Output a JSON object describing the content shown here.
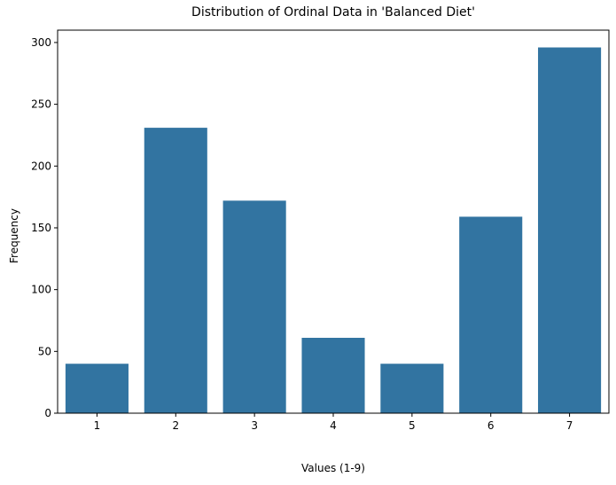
{
  "chart_data": {
    "type": "bar",
    "title": "Distribution of Ordinal Data in 'Balanced Diet'",
    "xlabel": "Values (1-9)",
    "ylabel": "Frequency",
    "categories": [
      "1",
      "2",
      "3",
      "4",
      "5",
      "6",
      "7"
    ],
    "values": [
      40,
      231,
      172,
      61,
      40,
      159,
      296
    ],
    "ylim": [
      0,
      310
    ],
    "yticks": [
      0,
      50,
      100,
      150,
      200,
      250,
      300
    ],
    "grid": false,
    "legend": "none",
    "bar_color": "#3274a1"
  }
}
